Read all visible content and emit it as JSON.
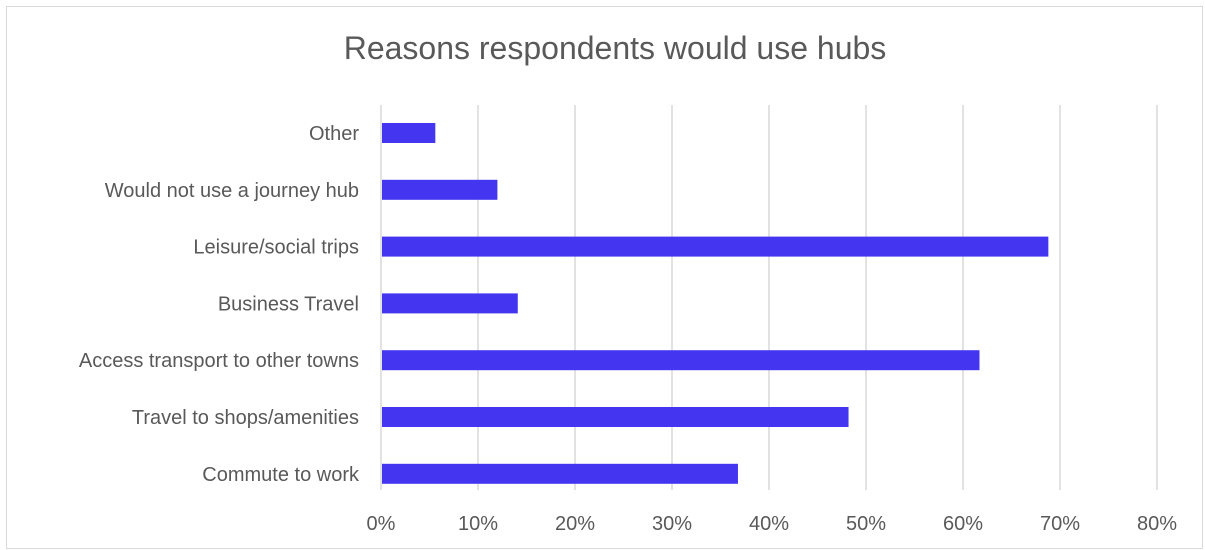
{
  "chart_data": {
    "type": "bar",
    "orientation": "horizontal",
    "title": "Reasons respondents would use hubs",
    "categories": [
      "Other",
      "Would not use a journey hub",
      "Leisure/social trips",
      "Business Travel",
      "Access transport to other towns",
      "Travel to shops/amenities",
      "Commute to work"
    ],
    "values": [
      0.056,
      0.12,
      0.688,
      0.141,
      0.617,
      0.482,
      0.368
    ],
    "xlim": [
      0,
      0.8
    ],
    "x_ticks": [
      0,
      0.1,
      0.2,
      0.3,
      0.4,
      0.5,
      0.6,
      0.7,
      0.8
    ],
    "x_tick_labels": [
      "0%",
      "10%",
      "20%",
      "30%",
      "40%",
      "50%",
      "60%",
      "70%",
      "80%"
    ],
    "xlabel": "",
    "ylabel": "",
    "grid": "vertical",
    "bar_color": "#4436f0",
    "grid_color": "#d9d9d9",
    "legend": "none"
  }
}
